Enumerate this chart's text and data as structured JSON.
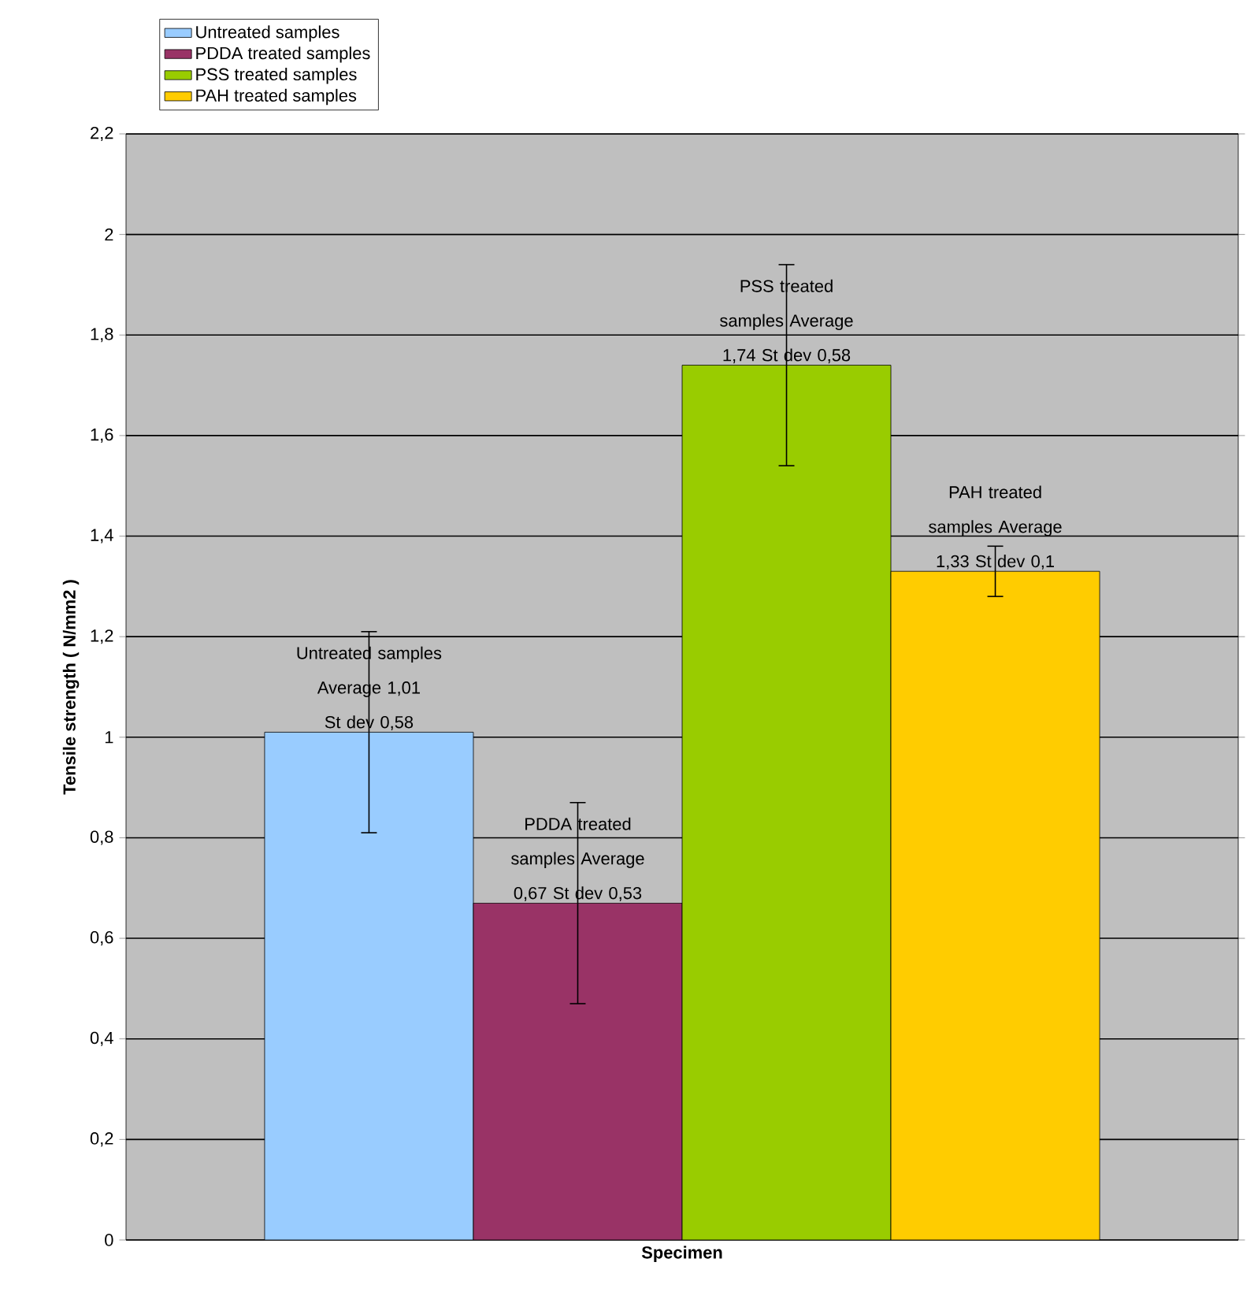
{
  "chart_data": {
    "type": "bar",
    "xlabel": "Specimen",
    "ylabel": "Tensile strength ( N/mm2 )",
    "categories": [
      null
    ],
    "ylim": [
      0,
      2.2
    ],
    "yticks": [
      0,
      {
        "value": 0.2,
        "label": "0,2"
      },
      {
        "value": 0.4,
        "label": "0,4"
      },
      {
        "value": 0.6,
        "label": "0,6"
      },
      {
        "value": 0.8,
        "label": "0,8"
      },
      1,
      {
        "value": 1.2,
        "label": "1,2"
      },
      {
        "value": 1.4,
        "label": "1,4"
      },
      {
        "value": 1.6,
        "label": "1,6"
      },
      {
        "value": 1.8,
        "label": "1,8"
      },
      2,
      {
        "value": 2.2,
        "label": "2,2"
      }
    ],
    "grid": "y",
    "legend": "top left",
    "series": [
      {
        "name": "Untreated samples",
        "color": "#99ccff",
        "values": [
          1.01
        ],
        "errors": [
          0.2
        ]
      },
      {
        "name": "PDDA treated samples",
        "color": "#993366",
        "values": [
          0.67
        ],
        "errors": [
          0.2
        ]
      },
      {
        "name": "PSS treated samples",
        "color": "#99cc00",
        "values": [
          1.74
        ],
        "errors": [
          0.2
        ]
      },
      {
        "name": "PAH treated samples",
        "color": "#ffcc00",
        "values": [
          1.33
        ],
        "errors": [
          0.05
        ]
      }
    ],
    "annotations": [
      "Untreated samples Average 1,01 St dev 0,58",
      "PDDA treated samples Average 0,67 St dev 0,53",
      "PSS treated samples Average 1,74 St dev 0,58",
      "PAH treated samples Average 1,33 St dev 0,1"
    ]
  }
}
